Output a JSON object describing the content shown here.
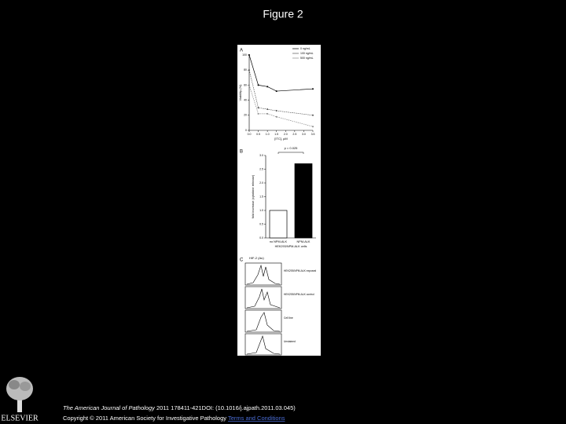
{
  "slide_title": "Figure 2",
  "figure": {
    "panel_a": {
      "label": "A",
      "type": "line",
      "x_label": "[ITC], µM",
      "y_label": "Viability (%)",
      "x": [
        0,
        0.5,
        1,
        1.5,
        3.5
      ],
      "series": [
        {
          "name": "0 ng/mL",
          "color": "#000000",
          "values": [
            100,
            60,
            58,
            52,
            55
          ]
        },
        {
          "name": "100 ng/mL",
          "color": "#555555",
          "values": [
            80,
            30,
            28,
            26,
            20
          ]
        },
        {
          "name": "500 ng/mL",
          "color": "#888888",
          "values": [
            60,
            22,
            22,
            18,
            5
          ]
        }
      ],
      "xlim": [
        0,
        3.5
      ],
      "xticks": [
        {
          "value": 0,
          "label": "0.0"
        },
        {
          "value": 0.5,
          "label": "0.5"
        },
        {
          "value": 1,
          "label": "1.0"
        },
        {
          "value": 1.5,
          "label": "1.5"
        },
        {
          "value": 2,
          "label": "2.0"
        },
        {
          "value": 2.5,
          "label": "2.5"
        },
        {
          "value": 3,
          "label": "3.0"
        },
        {
          "value": 3.5,
          "label": "3.5"
        }
      ],
      "ylim": [
        0,
        100
      ],
      "yticks": [
        0,
        20,
        40,
        60,
        80,
        100
      ]
    },
    "panel_b": {
      "label": "B",
      "type": "bar",
      "y_label": "fold increase (cytokine release)",
      "annotation": "p = 0.025",
      "categories": [
        "no NPM-ALK",
        "NPM-ALK"
      ],
      "values": [
        1.0,
        2.7
      ],
      "colors": [
        "#ffffff",
        "#000000"
      ],
      "group_label": "HEK293/NPM-ALK cells",
      "ylim": [
        0,
        3
      ],
      "yticks": [
        {
          "value": 0,
          "label": "0.0"
        },
        {
          "value": 0.5,
          "label": "0.5"
        },
        {
          "value": 1,
          "label": "1.0"
        },
        {
          "value": 1.5,
          "label": "1.5"
        },
        {
          "value": 2,
          "label": "2.0"
        },
        {
          "value": 2.5,
          "label": "2.5"
        },
        {
          "value": 3,
          "label": "3.0"
        }
      ]
    },
    "panel_c": {
      "label": "C",
      "axis_title": "HIF-2 (Au)",
      "rows": [
        "HEK293/NPM-ALK exposed",
        "HEK293/NPM-ALK control",
        "Cell line",
        "Unstained"
      ]
    }
  },
  "citation": {
    "journal": "The American Journal of Pathology",
    "details": " 2011 178411-421DOI: (10.1016/j.ajpath.2011.03.045)"
  },
  "copyright": {
    "text": "Copyright © 2011 American Society for Investigative Pathology ",
    "link": "Terms and Conditions"
  },
  "logo": "ELSEVIER"
}
